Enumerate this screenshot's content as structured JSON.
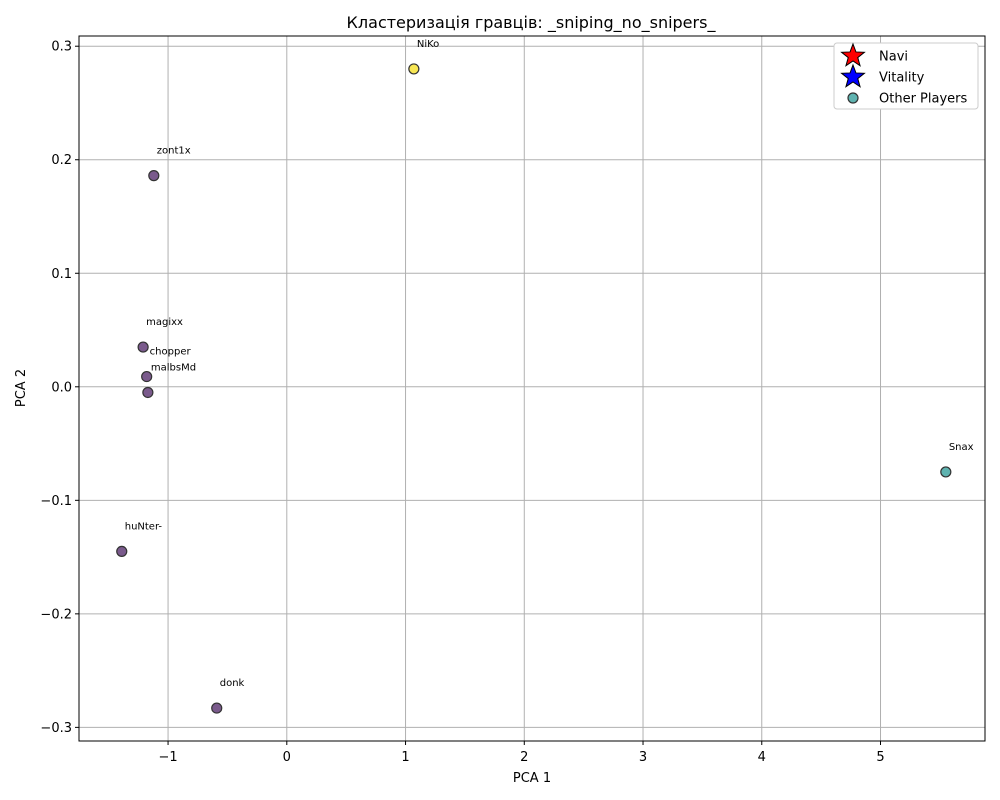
{
  "chart_data": {
    "type": "scatter",
    "title": "Кластеризація гравців: _sniping_no_snipers_",
    "xlabel": "PCA 1",
    "ylabel": "PCA 2",
    "xlim": [
      -1.75,
      5.88
    ],
    "ylim": [
      -0.312,
      0.309
    ],
    "xticks": [
      -1,
      0,
      1,
      2,
      3,
      4,
      5
    ],
    "yticks": [
      -0.3,
      -0.2,
      -0.1,
      0.0,
      0.1,
      0.2,
      0.3
    ],
    "xtick_labels": [
      "−1",
      "0",
      "1",
      "2",
      "3",
      "4",
      "5"
    ],
    "ytick_labels": [
      "−0.3",
      "−0.2",
      "−0.1",
      "0.0",
      "0.1",
      "0.2",
      "0.3"
    ],
    "grid": true,
    "legend_position": "top-right",
    "legend": [
      {
        "label": "Navi",
        "marker": "star",
        "color": "#ff0000"
      },
      {
        "label": "Vitality",
        "marker": "star",
        "color": "#0000ff"
      },
      {
        "label": "Other Players",
        "marker": "circle",
        "color": "#5fb3b0"
      }
    ],
    "points": [
      {
        "name": "NiKo",
        "x": 1.07,
        "y": 0.28,
        "color": "#f7e654"
      },
      {
        "name": "zont1x",
        "x": -1.12,
        "y": 0.186,
        "color": "#7a5a8c"
      },
      {
        "name": "magixx",
        "x": -1.21,
        "y": 0.035,
        "color": "#7a5a8c"
      },
      {
        "name": "chopper",
        "x": -1.18,
        "y": 0.009,
        "color": "#7a5a8c"
      },
      {
        "name": "malbsMd",
        "x": -1.17,
        "y": -0.005,
        "color": "#7a5a8c"
      },
      {
        "name": "Snax",
        "x": 5.55,
        "y": -0.075,
        "color": "#5fb3b0"
      },
      {
        "name": "huNter-",
        "x": -1.39,
        "y": -0.145,
        "color": "#7a5a8c"
      },
      {
        "name": "donk",
        "x": -0.59,
        "y": -0.283,
        "color": "#7a5a8c"
      }
    ]
  }
}
